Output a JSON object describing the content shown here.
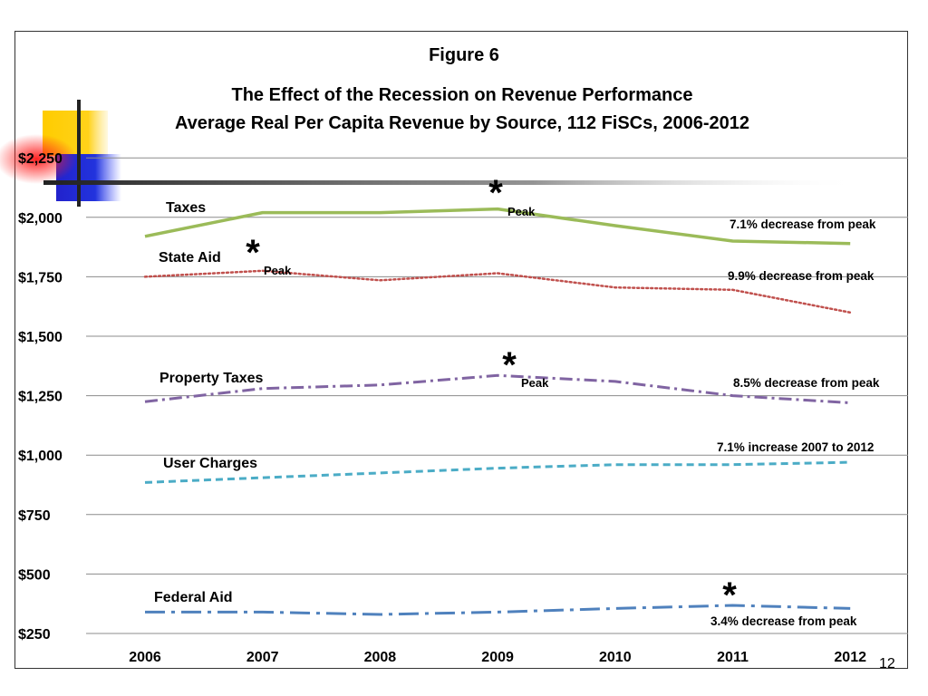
{
  "figure_label": "Figure 6",
  "page_number": "12",
  "chart_data": {
    "type": "line",
    "title": "The Effect of the Recession on Revenue Performance",
    "subtitle": "Average Real Per Capita Revenue by Source, 112 FiSCs, 2006-2012",
    "x": [
      "2006",
      "2007",
      "2008",
      "2009",
      "2010",
      "2011",
      "2012"
    ],
    "y_ticks": [
      "$250",
      "$500",
      "$750",
      "$1,000",
      "$1,250",
      "$1,500",
      "$1,750",
      "$2,000",
      "$2,250"
    ],
    "ylim": [
      250,
      2250
    ],
    "grid": true,
    "series": [
      {
        "name": "Taxes",
        "color": "#9BBB59",
        "style": "solid",
        "values": [
          1920,
          2020,
          2020,
          2035,
          1965,
          1900,
          1890
        ],
        "peak_index": 3,
        "peak_label": "Peak",
        "annotation": "7.1% decrease from peak"
      },
      {
        "name": "State Aid",
        "color": "#C0504D",
        "style": "dotted",
        "values": [
          1750,
          1775,
          1735,
          1765,
          1705,
          1695,
          1600
        ],
        "peak_index": 1,
        "peak_label": "Peak",
        "annotation": "9.9% decrease from peak"
      },
      {
        "name": "Property Taxes",
        "color": "#8064A2",
        "style": "dashdot",
        "values": [
          1225,
          1280,
          1295,
          1335,
          1310,
          1250,
          1220
        ],
        "peak_index": 3,
        "peak_label": "Peak",
        "annotation": "8.5% decrease from peak"
      },
      {
        "name": "User Charges",
        "color": "#4BACC6",
        "style": "dashed",
        "values": [
          885,
          905,
          925,
          945,
          960,
          960,
          970
        ],
        "annotation": "7.1% increase 2007 to 2012"
      },
      {
        "name": "Federal Aid",
        "color": "#4F81BD",
        "style": "longdashdot",
        "values": [
          340,
          340,
          330,
          340,
          355,
          368,
          355
        ],
        "peak_index": 5,
        "annotation": "3.4% decrease from peak"
      }
    ]
  }
}
